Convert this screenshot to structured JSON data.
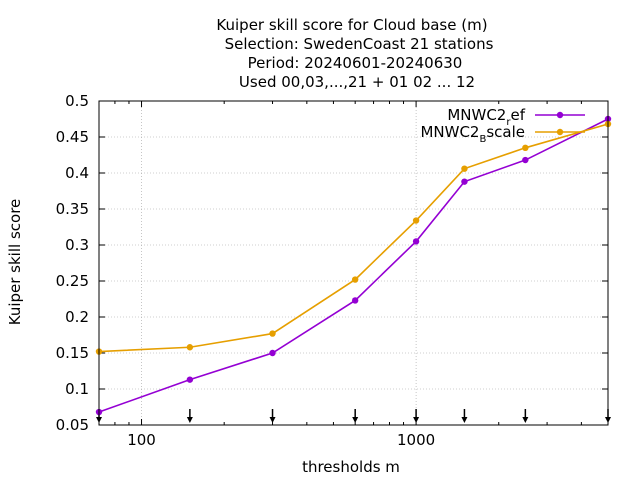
{
  "chart_data": {
    "type": "line",
    "title_lines": [
      "Kuiper skill score  for Cloud base (m)",
      "Selection: SwedenCoast     21 stations",
      "Period: 20240601-20240630",
      "Used 00,03,...,21 + 01 02 ... 12"
    ],
    "xlabel": "thresholds m",
    "ylabel": "Kuiper skill score",
    "x_scale": "log",
    "xlim": [
      70,
      5000
    ],
    "ylim": [
      0.05,
      0.5
    ],
    "x_ticks": [
      {
        "value": 100,
        "label": "100"
      },
      {
        "value": 1000,
        "label": "1000"
      }
    ],
    "y_ticks": [
      {
        "value": 0.05,
        "label": "0.05"
      },
      {
        "value": 0.1,
        "label": "0.1"
      },
      {
        "value": 0.15,
        "label": "0.15"
      },
      {
        "value": 0.2,
        "label": "0.2"
      },
      {
        "value": 0.25,
        "label": "0.25"
      },
      {
        "value": 0.3,
        "label": "0.3"
      },
      {
        "value": 0.35,
        "label": "0.35"
      },
      {
        "value": 0.4,
        "label": "0.4"
      },
      {
        "value": 0.45,
        "label": "0.45"
      },
      {
        "value": 0.5,
        "label": "0.5"
      }
    ],
    "grid": true,
    "legend_position": "top-right",
    "threshold_markers": [
      70,
      150,
      300,
      600,
      1000,
      1500,
      2500,
      5000
    ],
    "x": [
      70,
      150,
      300,
      600,
      1000,
      1500,
      2500,
      5000
    ],
    "series": [
      {
        "legend_main": "MNWC2",
        "legend_sub": "r",
        "legend_tail": "ef",
        "color": "#9400d3",
        "values": [
          0.068,
          0.113,
          0.15,
          0.223,
          0.305,
          0.388,
          0.418,
          0.475
        ]
      },
      {
        "legend_main": "MNWC2",
        "legend_sub": "B",
        "legend_tail": "scale",
        "color": "#e69f00",
        "values": [
          0.152,
          0.158,
          0.177,
          0.252,
          0.334,
          0.406,
          0.435,
          0.468
        ]
      }
    ]
  }
}
